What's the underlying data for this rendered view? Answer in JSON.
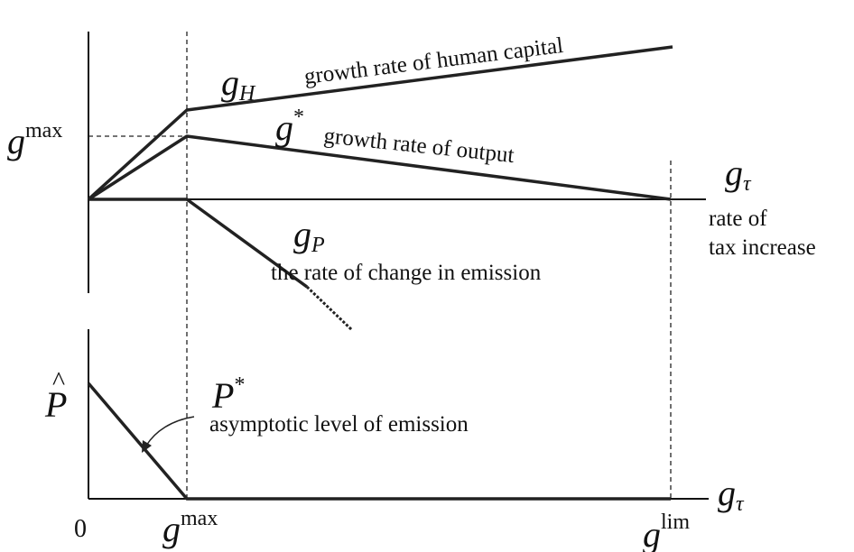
{
  "labels": {
    "g_max_left": {
      "base": "g",
      "sup": "max"
    },
    "g_H": {
      "base": "g",
      "sub": "H"
    },
    "g_H_text": "growth rate of human capital",
    "g_star": {
      "base": "g",
      "sup": "*"
    },
    "g_star_text": "growth rate of output",
    "g_tau_top": {
      "base": "g",
      "sub": "τ"
    },
    "tau_text": [
      "rate of",
      "tax increase"
    ],
    "g_P": {
      "base": "g",
      "sub": "P"
    },
    "g_P_text": "the rate of change in emission",
    "P_hat": {
      "base": "P",
      "hat": "^"
    },
    "P_star": {
      "base": "P",
      "sup": "*"
    },
    "P_star_text": "asymptotic level of emission",
    "g_tau_bottom": {
      "base": "g",
      "sub": "τ"
    },
    "zero": "0",
    "g_max_bottom": {
      "base": "g",
      "sup": "max"
    },
    "g_lim": {
      "base": "g",
      "sup": "lim"
    }
  }
}
